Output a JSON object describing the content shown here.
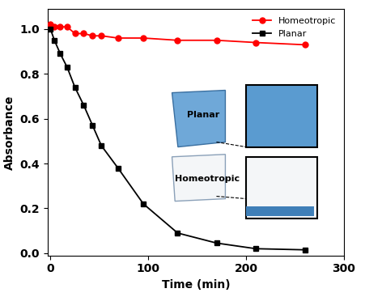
{
  "chart_data": {
    "type": "line",
    "x_label": "Time (min)",
    "y_label": "Absorbance",
    "x": [
      0,
      4,
      10,
      17,
      25,
      34,
      43,
      52,
      69,
      95,
      130,
      170,
      210,
      260
    ],
    "series": [
      {
        "name": "Homeotropic",
        "color": "#ff0000",
        "marker": "circle",
        "line_style": "solid",
        "values": [
          1.02,
          1.01,
          1.01,
          1.01,
          0.98,
          0.98,
          0.97,
          0.97,
          0.96,
          0.96,
          0.95,
          0.95,
          0.94,
          0.93
        ]
      },
      {
        "name": "Planar",
        "color": "#000000",
        "marker": "square",
        "line_style": "solid",
        "values": [
          1.0,
          0.95,
          0.89,
          0.83,
          0.74,
          0.66,
          0.57,
          0.48,
          0.38,
          0.22,
          0.09,
          0.045,
          0.02,
          0.015
        ]
      }
    ],
    "xlim": [
      -3,
      300
    ],
    "xticks": [
      0,
      100,
      200,
      300
    ],
    "ylim": [
      -0.01,
      1.09
    ],
    "yticks": [
      {
        "value": 0,
        "label": "0.0"
      },
      {
        "value": 0.2,
        "label": "0.2"
      },
      {
        "value": 0.4,
        "label": "0.4"
      },
      {
        "value": 0.6,
        "label": "0.6"
      },
      {
        "value": 0.8,
        "label": "0.8"
      },
      {
        "value": 1.0,
        "label": "1.0"
      }
    ],
    "legend": "upper right",
    "grid": false,
    "annotations": [
      "Planar",
      "Homeotropic"
    ]
  }
}
